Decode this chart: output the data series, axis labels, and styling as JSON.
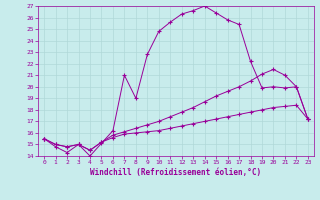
{
  "xlabel": "Windchill (Refroidissement éolien,°C)",
  "background_color": "#c8ecec",
  "line_color": "#990099",
  "grid_color": "#b0d8d8",
  "xlim": [
    -0.5,
    23.5
  ],
  "ylim": [
    14,
    27
  ],
  "xticks": [
    0,
    1,
    2,
    3,
    4,
    5,
    6,
    7,
    8,
    9,
    10,
    11,
    12,
    13,
    14,
    15,
    16,
    17,
    18,
    19,
    20,
    21,
    22,
    23
  ],
  "yticks": [
    14,
    15,
    16,
    17,
    18,
    19,
    20,
    21,
    22,
    23,
    24,
    25,
    26,
    27
  ],
  "line1_x": [
    0,
    1,
    2,
    3,
    4,
    5,
    6,
    7,
    8,
    9,
    10,
    11,
    12,
    13,
    14,
    15,
    16,
    17,
    18,
    19,
    20,
    21,
    22,
    23
  ],
  "line1_y": [
    15.5,
    14.8,
    14.3,
    15.0,
    14.0,
    15.1,
    16.2,
    21.0,
    19.0,
    22.8,
    24.8,
    25.6,
    26.3,
    26.6,
    27.0,
    26.4,
    25.8,
    25.4,
    22.2,
    19.9,
    20.0,
    19.9,
    20.0,
    17.2
  ],
  "line2_x": [
    0,
    1,
    2,
    3,
    4,
    5,
    6,
    7,
    8,
    9,
    10,
    11,
    12,
    13,
    14,
    15,
    16,
    17,
    18,
    19,
    20,
    21,
    22,
    23
  ],
  "line2_y": [
    15.5,
    15.0,
    14.8,
    15.0,
    14.5,
    15.2,
    15.8,
    16.1,
    16.4,
    16.7,
    17.0,
    17.4,
    17.8,
    18.2,
    18.7,
    19.2,
    19.6,
    20.0,
    20.5,
    21.1,
    21.5,
    21.0,
    20.0,
    17.2
  ],
  "line3_x": [
    0,
    1,
    2,
    3,
    4,
    5,
    6,
    7,
    8,
    9,
    10,
    11,
    12,
    13,
    14,
    15,
    16,
    17,
    18,
    19,
    20,
    21,
    22,
    23
  ],
  "line3_y": [
    15.5,
    15.0,
    14.8,
    15.0,
    14.5,
    15.2,
    15.6,
    15.9,
    16.0,
    16.1,
    16.2,
    16.4,
    16.6,
    16.8,
    17.0,
    17.2,
    17.4,
    17.6,
    17.8,
    18.0,
    18.2,
    18.3,
    18.4,
    17.2
  ]
}
